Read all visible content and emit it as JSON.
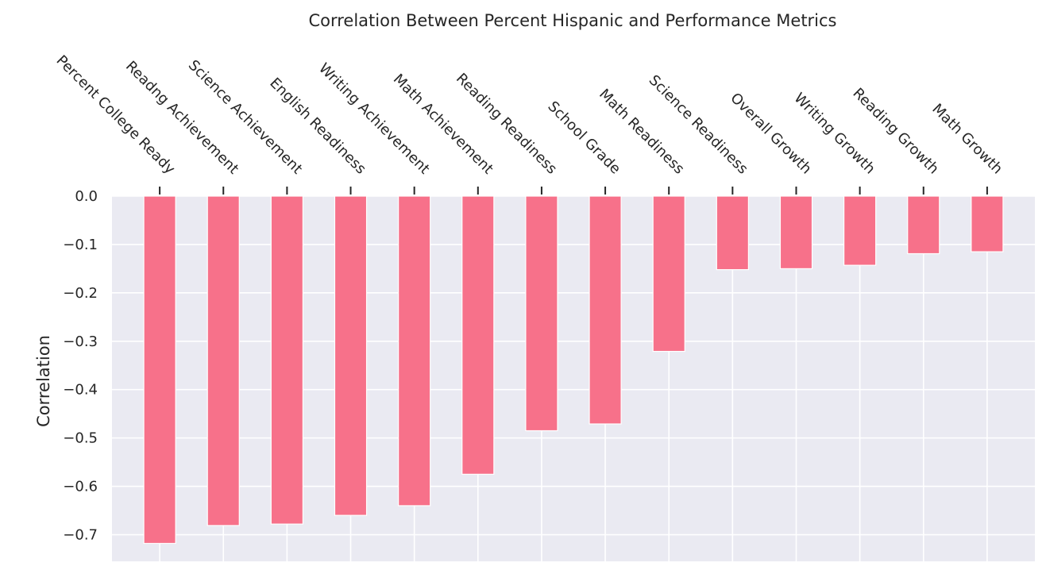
{
  "chart_data": {
    "type": "bar",
    "title": "Correlation Between Percent Hispanic and Performance Metrics",
    "xlabel": "",
    "ylabel": "Correlation",
    "categories": [
      "Percent College Ready",
      "Readng Achievement",
      "Science Achievement",
      "English Readiness",
      "Writing Achievement",
      "Math Achievement",
      "Reading Readiness",
      "School Grade",
      "Math Readiness",
      "Science Readiness",
      "Overall Growth",
      "Writing Growth",
      "Reading Growth",
      "Math Growth"
    ],
    "values": [
      -0.718,
      -0.681,
      -0.678,
      -0.66,
      -0.64,
      -0.575,
      -0.485,
      -0.471,
      -0.321,
      -0.152,
      -0.15,
      -0.143,
      -0.119,
      -0.115
    ],
    "ylim": [
      -0.755,
      0.0
    ],
    "yticks": [
      0.0,
      -0.1,
      -0.2,
      -0.3,
      -0.4,
      -0.5,
      -0.6,
      -0.7
    ],
    "ytick_labels": [
      "0.0",
      "−0.1",
      "−0.2",
      "−0.3",
      "−0.4",
      "−0.5",
      "−0.6",
      "−0.7"
    ],
    "x_axis_position": "top",
    "grid": true,
    "colors": {
      "bar": "#F7718A",
      "background": "#EAEAF2",
      "grid": "#FFFFFF",
      "text": "#262626"
    }
  }
}
